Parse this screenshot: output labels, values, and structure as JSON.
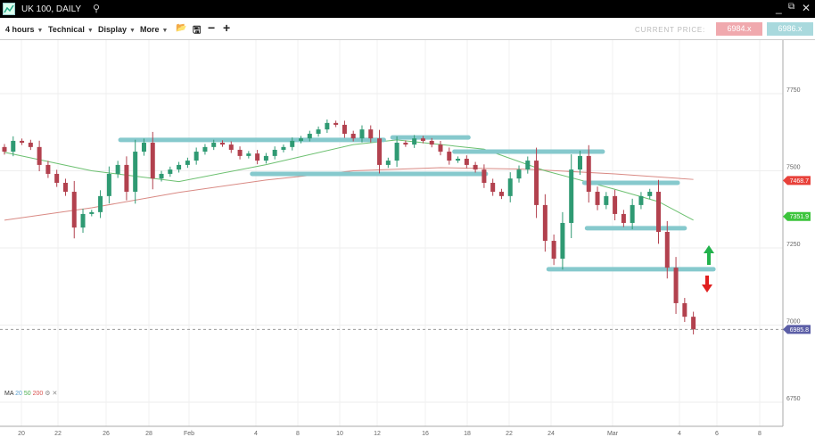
{
  "window": {
    "title": "UK 100, DAILY",
    "icons": [
      "chart-logo-icon",
      "search-icon",
      "minimize-icon",
      "popout-icon",
      "close-icon"
    ]
  },
  "toolbar": {
    "interval": "4 hours",
    "technical": "Technical",
    "display": "Display",
    "more": "More",
    "current_price_label": "CURRENT PRICE:",
    "sell_price": "6984.x",
    "buy_price": "6986.x",
    "sell_color": "#f0a9ae",
    "buy_color": "#a9d9dd"
  },
  "legend": {
    "ma": "MA",
    "p1": "20",
    "p2": "50",
    "p3": "200"
  },
  "chart_data": {
    "type": "candlestick",
    "title": "UK 100, DAILY",
    "ylim": [
      6650,
      7850
    ],
    "y_ticks": [
      "7750",
      "7500",
      "7250",
      "7000",
      "6750"
    ],
    "x_ticks": [
      "20",
      "22",
      "26",
      "28",
      "Feb",
      "4",
      "8",
      "10",
      "12",
      "16",
      "18",
      "22",
      "24",
      "Mar",
      "4",
      "6",
      "8"
    ],
    "closes": [
      7562,
      7597,
      7591,
      7577,
      7519,
      7490,
      7461,
      7432,
      7316,
      7360,
      7366,
      7418,
      7490,
      7519,
      7432,
      7562,
      7591,
      7475,
      7490,
      7504,
      7519,
      7533,
      7562,
      7577,
      7591,
      7585,
      7568,
      7548,
      7556,
      7533,
      7548,
      7568,
      7577,
      7597,
      7605,
      7620,
      7634,
      7655,
      7649,
      7620,
      7605,
      7634,
      7605,
      7519,
      7533,
      7591,
      7585,
      7605,
      7597,
      7585,
      7562,
      7533,
      7539,
      7519,
      7504,
      7461,
      7432,
      7418,
      7475,
      7504,
      7533,
      7389,
      7273,
      7215,
      7331,
      7504,
      7548,
      7432,
      7389,
      7418,
      7360,
      7331,
      7389,
      7418,
      7432,
      7302,
      7186,
      7071,
      7027,
      6986
    ],
    "ma_green": [
      [
        0,
        7560
      ],
      [
        10,
        7500
      ],
      [
        20,
        7465
      ],
      [
        30,
        7520
      ],
      [
        40,
        7585
      ],
      [
        45,
        7600
      ],
      [
        55,
        7570
      ],
      [
        62,
        7500
      ],
      [
        70,
        7440
      ],
      [
        75,
        7400
      ],
      [
        79,
        7340
      ]
    ],
    "ma_red": [
      [
        0,
        7340
      ],
      [
        10,
        7380
      ],
      [
        20,
        7430
      ],
      [
        30,
        7470
      ],
      [
        40,
        7500
      ],
      [
        50,
        7510
      ],
      [
        60,
        7505
      ],
      [
        70,
        7490
      ],
      [
        79,
        7472
      ]
    ],
    "levels": [
      {
        "price": 7600,
        "from": 13.3,
        "to": 43.5
      },
      {
        "price": 7608,
        "from": 44.5,
        "to": 53.2
      },
      {
        "price": 7490,
        "from": 28.4,
        "to": 55.2
      },
      {
        "price": 7562,
        "from": 51.6,
        "to": 68.6
      },
      {
        "price": 7461,
        "from": 66.5,
        "to": 77.2
      },
      {
        "price": 7314,
        "from": 66.8,
        "to": 78
      },
      {
        "price": 7181,
        "from": 62.4,
        "to": 81.3
      }
    ],
    "badges": [
      {
        "text": "7468.7",
        "price": 7468.7,
        "color": "#e8413a"
      },
      {
        "text": "7351.9",
        "price": 7351.9,
        "color": "#3cc43c"
      },
      {
        "text": "6985.8",
        "price": 6985.8,
        "color": "#5b5ea6"
      }
    ],
    "current_price": 6985.8,
    "up_color": "#2f9a73",
    "down_color": "#b2414e",
    "level_color": "#86c9cd"
  }
}
